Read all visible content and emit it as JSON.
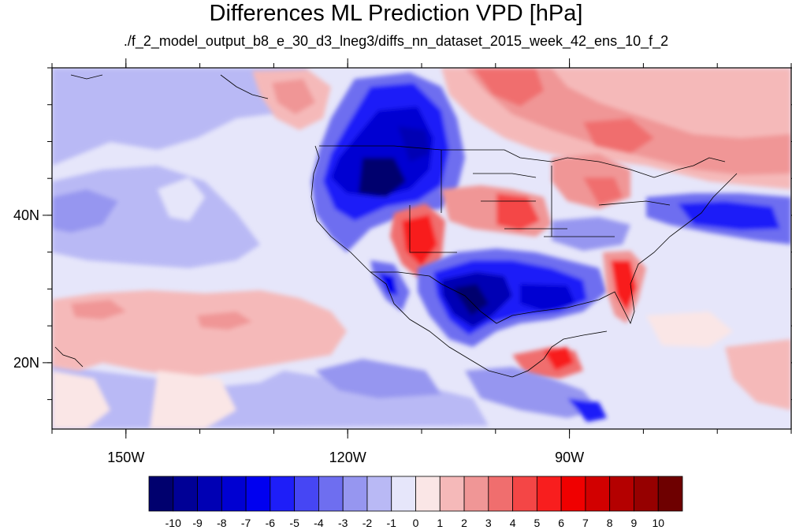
{
  "title": "Differences ML Prediction VPD [hPa]",
  "subtitle": "./f_2_model_output_b8_e_30_d3_lneg3/diffs_nn_dataset_2015_week_42_ens_10_f_2",
  "map": {
    "region": "Contiguous United States and surrounding North Pacific / Gulf of Mexico",
    "extent_lon": [
      -160,
      -60
    ],
    "extent_lat": [
      11,
      60
    ],
    "lon_ticks": [
      {
        "value": -150,
        "label": "150W"
      },
      {
        "value": -120,
        "label": "120W"
      },
      {
        "value": -90,
        "label": "90W"
      }
    ],
    "lat_ticks": [
      {
        "value": 40,
        "label": "40N"
      },
      {
        "value": 20,
        "label": "20N"
      }
    ],
    "features": [
      {
        "name": "Great Basin / Pacific Northwest",
        "value": -9
      },
      {
        "name": "Four Corners",
        "value": 6
      },
      {
        "name": "Texas / northern Mexico",
        "value": -9
      },
      {
        "name": "Gulf of Mexico",
        "value": -7
      },
      {
        "name": "Florida / Georgia",
        "value": 6
      },
      {
        "name": "Central Plains / Nebraska",
        "value": 5
      },
      {
        "name": "Central Canada",
        "value": 4
      },
      {
        "name": "Northwest Atlantic",
        "value": -5
      },
      {
        "name": "Subtropical North Pacific",
        "value": 2
      },
      {
        "name": "Caribbean / Central America",
        "value": 5
      }
    ]
  },
  "colorbar": {
    "labels": [
      "-10",
      "-9",
      "-8",
      "-7",
      "-6",
      "-5",
      "-4",
      "-3",
      "-2",
      "-1",
      "0",
      "1",
      "2",
      "3",
      "4",
      "5",
      "6",
      "7",
      "8",
      "9",
      "10"
    ],
    "colors": [
      "#00006e",
      "#000096",
      "#0000b4",
      "#0000d2",
      "#0000f0",
      "#1e1ef8",
      "#4646f4",
      "#6e6ef0",
      "#9696f0",
      "#b9b9f5",
      "#e6e6fa",
      "#fae6e6",
      "#f5b9b9",
      "#f09696",
      "#f06e6e",
      "#f44646",
      "#f81e1e",
      "#f00000",
      "#d20000",
      "#b40000",
      "#960000",
      "#6e0000"
    ]
  }
}
